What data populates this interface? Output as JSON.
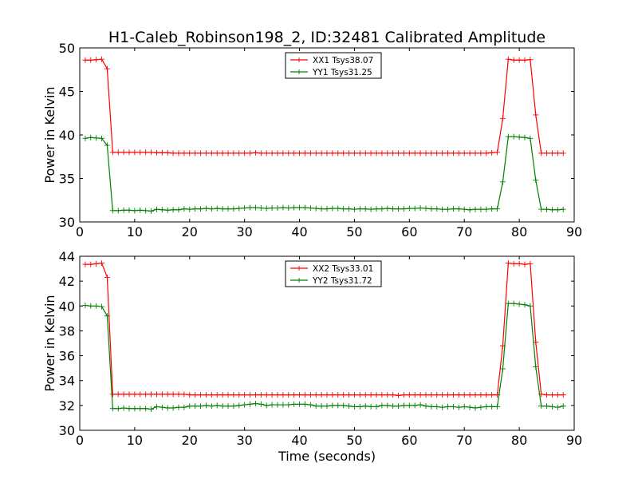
{
  "chart_data": {
    "type": "line",
    "title": "H1-Caleb_Robinson198_2, ID:32481 Calibrated Amplitude",
    "xlabel": "Time (seconds)",
    "xlim": [
      0,
      90
    ],
    "xticks": [
      "0",
      "10",
      "20",
      "30",
      "40",
      "50",
      "60",
      "70",
      "80",
      "90"
    ],
    "colors": {
      "red": "#ff0000",
      "green": "#008000"
    },
    "panels": [
      {
        "ylabel": "Power in Kelvin",
        "ylim": [
          30,
          50
        ],
        "yticks": [
          "30",
          "35",
          "40",
          "45",
          "50"
        ],
        "legend_position": "top-center",
        "series": [
          {
            "name": "XX1 Tsys38.07",
            "color": "#ff0000",
            "x": [
              1,
              2,
              3,
              4,
              5,
              6,
              7,
              8,
              9,
              10,
              11,
              12,
              13,
              14,
              15,
              16,
              17,
              18,
              19,
              20,
              21,
              22,
              23,
              24,
              25,
              26,
              27,
              28,
              29,
              30,
              31,
              32,
              33,
              34,
              35,
              36,
              37,
              38,
              39,
              40,
              41,
              42,
              43,
              44,
              45,
              46,
              47,
              48,
              49,
              50,
              51,
              52,
              53,
              54,
              55,
              56,
              57,
              58,
              59,
              60,
              61,
              62,
              63,
              64,
              65,
              66,
              67,
              68,
              69,
              70,
              71,
              72,
              73,
              74,
              75,
              76,
              77,
              78,
              79,
              80,
              81,
              82,
              83,
              84,
              85,
              86,
              87,
              88
            ],
            "values": [
              48.6,
              48.6,
              48.65,
              48.7,
              47.6,
              38.0,
              38.0,
              38.0,
              38.0,
              38.0,
              38.0,
              38.0,
              38.0,
              37.95,
              37.95,
              37.95,
              37.9,
              37.9,
              37.9,
              37.9,
              37.9,
              37.9,
              37.9,
              37.9,
              37.9,
              37.9,
              37.9,
              37.9,
              37.9,
              37.9,
              37.9,
              37.95,
              37.9,
              37.9,
              37.9,
              37.9,
              37.9,
              37.9,
              37.9,
              37.9,
              37.9,
              37.9,
              37.9,
              37.9,
              37.9,
              37.9,
              37.9,
              37.9,
              37.9,
              37.9,
              37.9,
              37.9,
              37.9,
              37.9,
              37.9,
              37.9,
              37.9,
              37.9,
              37.9,
              37.9,
              37.9,
              37.9,
              37.9,
              37.9,
              37.9,
              37.9,
              37.9,
              37.9,
              37.9,
              37.9,
              37.9,
              37.9,
              37.9,
              37.9,
              37.95,
              38.0,
              41.9,
              48.7,
              48.6,
              48.6,
              48.6,
              48.65,
              42.3,
              37.9,
              37.9,
              37.9,
              37.9,
              37.9
            ]
          },
          {
            "name": "YY1 Tsys31.25",
            "color": "#008000",
            "x": [
              1,
              2,
              3,
              4,
              5,
              6,
              7,
              8,
              9,
              10,
              11,
              12,
              13,
              14,
              15,
              16,
              17,
              18,
              19,
              20,
              21,
              22,
              23,
              24,
              25,
              26,
              27,
              28,
              29,
              30,
              31,
              32,
              33,
              34,
              35,
              36,
              37,
              38,
              39,
              40,
              41,
              42,
              43,
              44,
              45,
              46,
              47,
              48,
              49,
              50,
              51,
              52,
              53,
              54,
              55,
              56,
              57,
              58,
              59,
              60,
              61,
              62,
              63,
              64,
              65,
              66,
              67,
              68,
              69,
              70,
              71,
              72,
              73,
              74,
              75,
              76,
              77,
              78,
              79,
              80,
              81,
              82,
              83,
              84,
              85,
              86,
              87,
              88
            ],
            "values": [
              39.6,
              39.7,
              39.65,
              39.6,
              38.8,
              31.3,
              31.3,
              31.35,
              31.35,
              31.3,
              31.35,
              31.3,
              31.25,
              31.45,
              31.4,
              31.35,
              31.4,
              31.4,
              31.5,
              31.45,
              31.5,
              31.5,
              31.55,
              31.5,
              31.55,
              31.5,
              31.5,
              31.5,
              31.55,
              31.6,
              31.65,
              31.65,
              31.6,
              31.55,
              31.6,
              31.6,
              31.65,
              31.6,
              31.65,
              31.65,
              31.65,
              31.6,
              31.55,
              31.5,
              31.5,
              31.55,
              31.55,
              31.5,
              31.5,
              31.45,
              31.5,
              31.5,
              31.45,
              31.5,
              31.5,
              31.55,
              31.5,
              31.5,
              31.5,
              31.55,
              31.55,
              31.6,
              31.55,
              31.5,
              31.5,
              31.45,
              31.45,
              31.5,
              31.5,
              31.45,
              31.4,
              31.45,
              31.45,
              31.45,
              31.5,
              31.5,
              34.6,
              39.8,
              39.8,
              39.75,
              39.7,
              39.6,
              34.8,
              31.45,
              31.45,
              31.4,
              31.4,
              31.45
            ]
          }
        ]
      },
      {
        "ylabel": "Power in Kelvin",
        "ylim": [
          30,
          44
        ],
        "yticks": [
          "30",
          "32",
          "34",
          "36",
          "38",
          "40",
          "42",
          "44"
        ],
        "legend_position": "top-center",
        "series": [
          {
            "name": "XX2 Tsys33.01",
            "color": "#ff0000",
            "x": [
              1,
              2,
              3,
              4,
              5,
              6,
              7,
              8,
              9,
              10,
              11,
              12,
              13,
              14,
              15,
              16,
              17,
              18,
              19,
              20,
              21,
              22,
              23,
              24,
              25,
              26,
              27,
              28,
              29,
              30,
              31,
              32,
              33,
              34,
              35,
              36,
              37,
              38,
              39,
              40,
              41,
              42,
              43,
              44,
              45,
              46,
              47,
              48,
              49,
              50,
              51,
              52,
              53,
              54,
              55,
              56,
              57,
              58,
              59,
              60,
              61,
              62,
              63,
              64,
              65,
              66,
              67,
              68,
              69,
              70,
              71,
              72,
              73,
              74,
              75,
              76,
              77,
              78,
              79,
              80,
              81,
              82,
              83,
              84,
              85,
              86,
              87,
              88
            ],
            "values": [
              43.35,
              43.35,
              43.4,
              43.45,
              42.3,
              32.9,
              32.9,
              32.9,
              32.9,
              32.9,
              32.9,
              32.9,
              32.9,
              32.9,
              32.9,
              32.9,
              32.9,
              32.9,
              32.9,
              32.85,
              32.85,
              32.85,
              32.85,
              32.85,
              32.85,
              32.85,
              32.85,
              32.85,
              32.85,
              32.85,
              32.85,
              32.85,
              32.85,
              32.85,
              32.85,
              32.85,
              32.85,
              32.85,
              32.85,
              32.85,
              32.85,
              32.85,
              32.85,
              32.85,
              32.85,
              32.85,
              32.85,
              32.85,
              32.85,
              32.85,
              32.85,
              32.85,
              32.85,
              32.85,
              32.85,
              32.85,
              32.85,
              32.8,
              32.85,
              32.85,
              32.85,
              32.85,
              32.85,
              32.85,
              32.85,
              32.85,
              32.85,
              32.85,
              32.85,
              32.85,
              32.85,
              32.85,
              32.85,
              32.85,
              32.85,
              32.85,
              36.8,
              43.45,
              43.4,
              43.4,
              43.35,
              43.4,
              37.1,
              32.9,
              32.85,
              32.85,
              32.85,
              32.85
            ]
          },
          {
            "name": "YY2 Tsys31.72",
            "color": "#008000",
            "x": [
              1,
              2,
              3,
              4,
              5,
              6,
              7,
              8,
              9,
              10,
              11,
              12,
              13,
              14,
              15,
              16,
              17,
              18,
              19,
              20,
              21,
              22,
              23,
              24,
              25,
              26,
              27,
              28,
              29,
              30,
              31,
              32,
              33,
              34,
              35,
              36,
              37,
              38,
              39,
              40,
              41,
              42,
              43,
              44,
              45,
              46,
              47,
              48,
              49,
              50,
              51,
              52,
              53,
              54,
              55,
              56,
              57,
              58,
              59,
              60,
              61,
              62,
              63,
              64,
              65,
              66,
              67,
              68,
              69,
              70,
              71,
              72,
              73,
              74,
              75,
              76,
              77,
              78,
              79,
              80,
              81,
              82,
              83,
              84,
              85,
              86,
              87,
              88
            ],
            "values": [
              40.05,
              40.0,
              40.0,
              39.95,
              39.2,
              31.75,
              31.75,
              31.8,
              31.75,
              31.75,
              31.75,
              31.75,
              31.7,
              31.9,
              31.85,
              31.8,
              31.8,
              31.85,
              31.85,
              31.95,
              31.95,
              31.95,
              32.0,
              31.95,
              32.0,
              31.95,
              31.95,
              31.95,
              32.0,
              32.05,
              32.1,
              32.15,
              32.1,
              32.0,
              32.05,
              32.05,
              32.05,
              32.05,
              32.1,
              32.1,
              32.1,
              32.05,
              31.95,
              31.95,
              31.95,
              32.0,
              32.0,
              32.0,
              31.95,
              31.9,
              31.9,
              31.95,
              31.9,
              31.9,
              32.0,
              32.0,
              31.95,
              31.95,
              32.0,
              32.0,
              32.0,
              32.05,
              31.95,
              31.9,
              31.9,
              31.85,
              31.9,
              31.9,
              31.85,
              31.9,
              31.85,
              31.8,
              31.85,
              31.9,
              31.9,
              31.9,
              34.95,
              40.2,
              40.2,
              40.15,
              40.1,
              40.0,
              35.1,
              31.95,
              31.95,
              31.9,
              31.85,
              31.95
            ]
          }
        ]
      }
    ]
  }
}
